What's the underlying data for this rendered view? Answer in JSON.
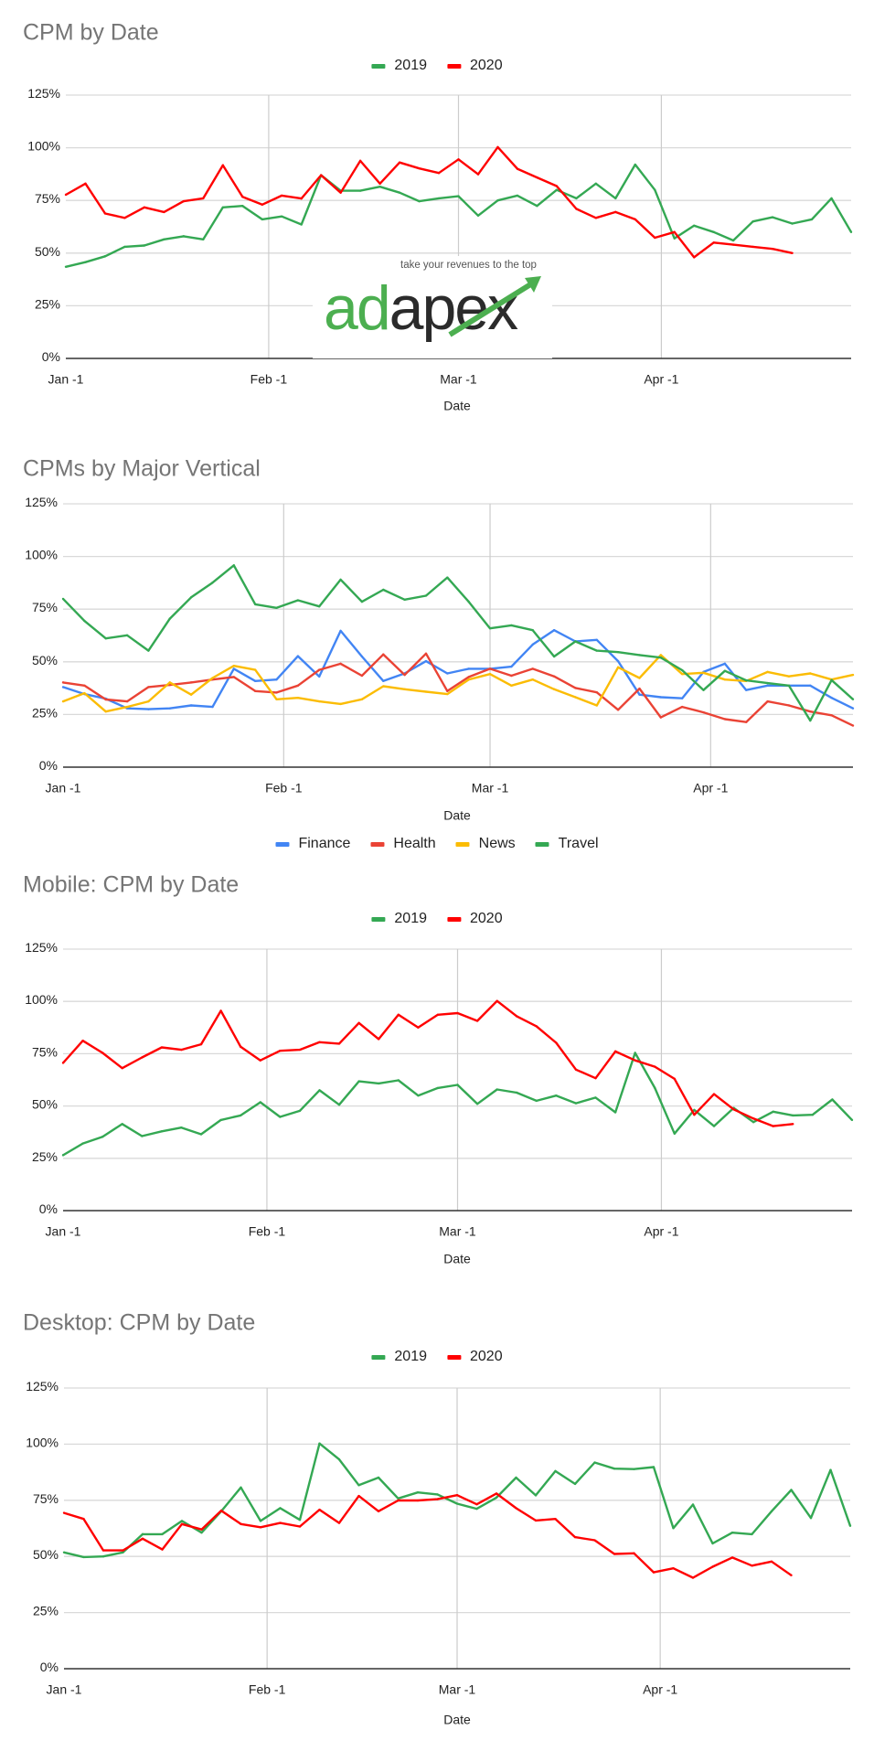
{
  "logo": {
    "wordmark_green": "ad",
    "wordmark_dark": "apex",
    "tagline": "take your revenues to the top",
    "green": "#4caf50",
    "dark": "#2b2b2b"
  },
  "chart_data": [
    {
      "type": "line",
      "title": "CPM by Date",
      "xlabel": "Date",
      "ylabel": "",
      "ylim": [
        0,
        125
      ],
      "yticks": [
        0,
        25,
        50,
        75,
        100,
        125
      ],
      "ytick_labels": [
        "0%",
        "25%",
        "50%",
        "75%",
        "100%",
        "125%"
      ],
      "xticks": [
        "Jan 1",
        "Feb 1",
        "Mar 1",
        "Apr 1"
      ],
      "xtick_labels": [
        "Jan -1",
        "Feb -1",
        "Mar -1",
        "Apr -1"
      ],
      "grid": true,
      "legend_position": "top",
      "x": [
        "Jan 1",
        "Jan 4",
        "Jan 7",
        "Jan 10",
        "Jan 13",
        "Jan 16",
        "Jan 19",
        "Jan 22",
        "Jan 25",
        "Jan 28",
        "Jan 31",
        "Feb 3",
        "Feb 6",
        "Feb 9",
        "Feb 12",
        "Feb 15",
        "Feb 18",
        "Feb 21",
        "Feb 24",
        "Feb 27",
        "Mar 1",
        "Mar 4",
        "Mar 7",
        "Mar 10",
        "Mar 13",
        "Mar 16",
        "Mar 19",
        "Mar 22",
        "Mar 25",
        "Mar 28",
        "Mar 31",
        "Apr 3",
        "Apr 6",
        "Apr 9",
        "Apr 12",
        "Apr 15",
        "Apr 18",
        "Apr 21",
        "Apr 24",
        "Apr 27",
        "Apr 30"
      ],
      "series": [
        {
          "name": "2019",
          "color": "#34a853",
          "values": [
            43.5,
            45.7,
            48.5,
            53,
            53.6,
            56.5,
            58,
            56.5,
            71.7,
            72.4,
            66,
            67.4,
            63.6,
            87,
            79.6,
            79.6,
            81.5,
            78.7,
            74.6,
            76,
            77,
            67.8,
            75,
            77.3,
            72.4,
            80,
            76,
            83,
            76,
            92,
            80,
            57,
            63,
            60,
            56,
            65,
            67,
            64,
            66,
            76,
            60
          ]
        },
        {
          "name": "2020",
          "color": "#ff0000",
          "values": [
            77.7,
            83,
            68.8,
            66.7,
            71.7,
            69.5,
            74.6,
            76,
            91.7,
            76.7,
            73,
            77.3,
            75.9,
            87,
            78.7,
            93.8,
            83,
            93,
            90.2,
            88,
            94.5,
            87.4,
            100.3,
            90,
            85.9,
            81.8,
            71,
            66.7,
            69.5,
            66,
            57.3,
            60,
            48,
            55,
            54,
            53,
            52,
            50,
            null,
            null,
            null
          ]
        }
      ]
    },
    {
      "type": "line",
      "title": "CPMs by Major Vertical",
      "xlabel": "Date",
      "ylabel": "",
      "ylim": [
        0,
        125
      ],
      "yticks": [
        0,
        25,
        50,
        75,
        100,
        125
      ],
      "ytick_labels": [
        "0%",
        "25%",
        "50%",
        "75%",
        "100%",
        "125%"
      ],
      "xticks": [
        "Jan 1",
        "Feb 1",
        "Mar 1",
        "Apr 1"
      ],
      "xtick_labels": [
        "Jan -1",
        "Feb -1",
        "Mar -1",
        "Apr -1"
      ],
      "grid": true,
      "legend_position": "bottom",
      "x": [
        "Jan 1",
        "Jan 4",
        "Jan 7",
        "Jan 10",
        "Jan 13",
        "Jan 16",
        "Jan 19",
        "Jan 22",
        "Jan 25",
        "Jan 28",
        "Jan 31",
        "Feb 3",
        "Feb 6",
        "Feb 9",
        "Feb 12",
        "Feb 15",
        "Feb 18",
        "Feb 21",
        "Feb 24",
        "Feb 27",
        "Mar 1",
        "Mar 4",
        "Mar 7",
        "Mar 10",
        "Mar 13",
        "Mar 16",
        "Mar 19",
        "Mar 22",
        "Mar 25",
        "Mar 28",
        "Mar 31",
        "Apr 3",
        "Apr 6",
        "Apr 9",
        "Apr 12",
        "Apr 15",
        "Apr 18",
        "Apr 21"
      ],
      "series": [
        {
          "name": "Finance",
          "color": "#4285f4",
          "values": [
            38,
            34.7,
            32.5,
            27.9,
            27.5,
            27.9,
            29.3,
            28.6,
            46.7,
            40.9,
            41.6,
            52.7,
            43,
            64.7,
            52.5,
            40.9,
            44.5,
            50.3,
            44.5,
            46.7,
            46.7,
            47.7,
            58.2,
            65,
            59.7,
            60.4,
            50.3,
            34.4,
            33.2,
            32.7,
            45.2,
            49.1,
            36.6,
            38.7,
            38.7,
            38.7,
            32.9,
            27.9
          ]
        },
        {
          "name": "Health",
          "color": "#ea4335",
          "values": [
            40.2,
            38.7,
            32.1,
            31.2,
            38,
            39,
            40.2,
            41.6,
            42.8,
            36.1,
            35.4,
            38.7,
            46.2,
            49.1,
            43.4,
            53.5,
            43.8,
            53.9,
            36.1,
            42.8,
            46.7,
            43.4,
            46.7,
            43.1,
            37.6,
            35.5,
            27.2,
            37.3,
            23.6,
            28.6,
            26,
            22.8,
            21.4,
            31.2,
            29.3,
            26.4,
            24.6,
            19.7
          ]
        },
        {
          "name": "News",
          "color": "#fbbc04",
          "values": [
            31.2,
            35.1,
            26.4,
            28.6,
            31.2,
            40.2,
            34.4,
            42.3,
            48.1,
            46.2,
            32.2,
            32.9,
            31.2,
            30,
            32.2,
            38.4,
            37,
            35.8,
            34.7,
            41.6,
            44.2,
            38.7,
            41.6,
            37,
            33.2,
            29.3,
            47.4,
            42.3,
            53.2,
            44.2,
            44.8,
            41.6,
            40.9,
            45.2,
            43.1,
            44.5,
            41.6,
            43.8
          ]
        },
        {
          "name": "Travel",
          "color": "#34a853",
          "values": [
            79.9,
            69.4,
            61.1,
            62.6,
            55.3,
            70.5,
            80.6,
            87.6,
            95.8,
            77.3,
            75.6,
            79.2,
            76.3,
            89,
            78.5,
            84.2,
            79.5,
            81.4,
            90,
            78.5,
            65.9,
            67.3,
            65,
            52.5,
            59.7,
            55.3,
            54.6,
            53.2,
            52,
            46,
            36.6,
            45.7,
            41.2,
            39.9,
            38.7,
            22.1,
            41.3,
            32.2
          ]
        }
      ]
    },
    {
      "type": "line",
      "title": "Mobile: CPM by Date",
      "xlabel": "Date",
      "ylabel": "",
      "ylim": [
        0,
        125
      ],
      "yticks": [
        0,
        25,
        50,
        75,
        100,
        125
      ],
      "ytick_labels": [
        "0%",
        "25%",
        "50%",
        "75%",
        "100%",
        "125%"
      ],
      "xticks": [
        "Jan 1",
        "Feb 1",
        "Mar 1",
        "Apr 1"
      ],
      "xtick_labels": [
        "Jan -1",
        "Feb -1",
        "Mar -1",
        "Apr -1"
      ],
      "grid": true,
      "legend_position": "top",
      "x": [
        "Jan 1",
        "Jan 4",
        "Jan 7",
        "Jan 10",
        "Jan 13",
        "Jan 16",
        "Jan 19",
        "Jan 22",
        "Jan 25",
        "Jan 28",
        "Jan 31",
        "Feb 3",
        "Feb 6",
        "Feb 9",
        "Feb 12",
        "Feb 15",
        "Feb 18",
        "Feb 21",
        "Feb 24",
        "Feb 27",
        "Mar 1",
        "Mar 4",
        "Mar 7",
        "Mar 10",
        "Mar 13",
        "Mar 16",
        "Mar 19",
        "Mar 22",
        "Mar 25",
        "Mar 28",
        "Mar 31",
        "Apr 3",
        "Apr 6",
        "Apr 9",
        "Apr 12",
        "Apr 15",
        "Apr 18",
        "Apr 21",
        "Apr 24",
        "Apr 27",
        "Apr 30"
      ],
      "series": [
        {
          "name": "2019",
          "color": "#34a853",
          "values": [
            26.5,
            32.1,
            35.3,
            41.4,
            35.6,
            37.9,
            39.7,
            36.5,
            43.3,
            45.5,
            51.8,
            44.8,
            47.7,
            57.5,
            50.6,
            61.8,
            60.8,
            62.3,
            55,
            58.6,
            60.1,
            51,
            57.9,
            56.4,
            52.5,
            55,
            51.3,
            54,
            47,
            75.4,
            58.6,
            36.8,
            48.1,
            40.4,
            49.1,
            42.3,
            47.3,
            45.5,
            45.8,
            53.1,
            43.3
          ]
        },
        {
          "name": "2020",
          "color": "#ff0000",
          "values": [
            70.6,
            81.2,
            75.4,
            68.1,
            73.2,
            78,
            76.9,
            79.5,
            95.5,
            78.3,
            71.8,
            76.4,
            76.9,
            80.5,
            79.8,
            89.7,
            82,
            93.6,
            87.5,
            93.6,
            94.4,
            90.7,
            100.2,
            92.9,
            88.1,
            80.2,
            67.4,
            63.3,
            76.1,
            71.8,
            68.8,
            63,
            45.8,
            55.7,
            48.4,
            44,
            40.4,
            41.4,
            null,
            null,
            null
          ]
        }
      ]
    },
    {
      "type": "line",
      "title": "Desktop: CPM by Date",
      "xlabel": "Date",
      "ylabel": "",
      "ylim": [
        0,
        125
      ],
      "yticks": [
        0,
        25,
        50,
        75,
        100,
        125
      ],
      "ytick_labels": [
        "0%",
        "25%",
        "50%",
        "75%",
        "100%",
        "125%"
      ],
      "xticks": [
        "Jan 1",
        "Feb 1",
        "Mar 1",
        "Apr 1"
      ],
      "xtick_labels": [
        "Jan -1",
        "Feb -1",
        "Mar -1",
        "Apr -1"
      ],
      "grid": true,
      "legend_position": "top",
      "x": [
        "Jan 1",
        "Jan 4",
        "Jan 7",
        "Jan 10",
        "Jan 13",
        "Jan 16",
        "Jan 19",
        "Jan 22",
        "Jan 25",
        "Jan 28",
        "Jan 31",
        "Feb 3",
        "Feb 6",
        "Feb 9",
        "Feb 12",
        "Feb 15",
        "Feb 18",
        "Feb 21",
        "Feb 24",
        "Feb 27",
        "Mar 1",
        "Mar 4",
        "Mar 7",
        "Mar 10",
        "Mar 13",
        "Mar 16",
        "Mar 19",
        "Mar 22",
        "Mar 25",
        "Mar 28",
        "Mar 31",
        "Apr 3",
        "Apr 6",
        "Apr 9",
        "Apr 12",
        "Apr 15",
        "Apr 18",
        "Apr 21",
        "Apr 24",
        "Apr 27",
        "Apr 30"
      ],
      "series": [
        {
          "name": "2019",
          "color": "#34a853",
          "values": [
            51.8,
            49.7,
            50,
            51.8,
            59.9,
            59.9,
            65.8,
            60.6,
            70.1,
            80.7,
            65.8,
            71.5,
            66.3,
            100.3,
            93.2,
            81.7,
            85.1,
            75.8,
            78.5,
            77.6,
            73.5,
            71.2,
            76.2,
            85.1,
            77.2,
            88,
            82.3,
            91.8,
            89.1,
            88.9,
            89.8,
            62.6,
            73.1,
            55.8,
            60.6,
            59.9,
            70.1,
            79.6,
            67.1,
            88.5,
            63.6
          ]
        },
        {
          "name": "2020",
          "color": "#ff0000",
          "values": [
            69.4,
            66.7,
            52.7,
            52.7,
            57.9,
            53.1,
            64.4,
            62,
            70.4,
            64.4,
            63,
            64.9,
            63.3,
            70.8,
            64.9,
            76.9,
            70.1,
            74.9,
            74.9,
            75.5,
            77.3,
            73.2,
            78,
            71.5,
            66,
            66.7,
            58.6,
            57.2,
            51.1,
            51.4,
            42.9,
            44.7,
            40.5,
            45.4,
            49.5,
            45.9,
            47.7,
            41.6,
            null,
            null,
            null
          ]
        }
      ]
    }
  ]
}
